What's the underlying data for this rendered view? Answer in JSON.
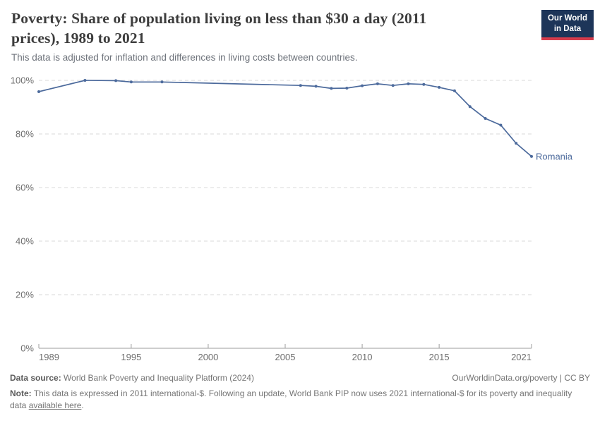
{
  "header": {
    "title": "Poverty: Share of population living on less than $30 a day (2011 prices), 1989 to 2021",
    "subtitle": "This data is adjusted for inflation and differences in living costs between countries.",
    "logo_line1": "Our World",
    "logo_line2": "in Data"
  },
  "chart_data": {
    "type": "line",
    "title": "Poverty: Share of population living on less than $30 a day (2011 prices), 1989 to 2021",
    "subtitle": "This data is adjusted for inflation and differences in living costs between countries.",
    "xlabel": "",
    "ylabel": "",
    "xlim": [
      1989,
      2021
    ],
    "ylim": [
      0,
      100
    ],
    "x_ticks": [
      1989,
      1995,
      2000,
      2005,
      2010,
      2015,
      2021
    ],
    "y_ticks": [
      0,
      20,
      40,
      60,
      80,
      100
    ],
    "y_tick_suffix": "%",
    "grid": "horizontal-dashed",
    "legend": "end-of-line-label",
    "series": [
      {
        "name": "Romania",
        "color": "#4C6A9C",
        "points": [
          [
            1989,
            95.8
          ],
          [
            1992,
            100.0
          ],
          [
            1994,
            99.9
          ],
          [
            1995,
            99.4
          ],
          [
            1997,
            99.4
          ],
          [
            2006,
            98.1
          ],
          [
            2007,
            97.8
          ],
          [
            2008,
            97.0
          ],
          [
            2009,
            97.1
          ],
          [
            2010,
            98.0
          ],
          [
            2011,
            98.7
          ],
          [
            2012,
            98.1
          ],
          [
            2013,
            98.7
          ],
          [
            2014,
            98.5
          ],
          [
            2015,
            97.4
          ],
          [
            2016,
            96.1
          ],
          [
            2017,
            90.2
          ],
          [
            2018,
            85.8
          ],
          [
            2019,
            83.3
          ],
          [
            2020,
            76.5
          ],
          [
            2021,
            71.6
          ]
        ]
      }
    ]
  },
  "footer": {
    "source_label": "Data source:",
    "source_text": " World Bank Poverty and Inequality Platform (2024)",
    "attribution": "OurWorldinData.org/poverty | CC BY",
    "note_label": "Note:",
    "note_before": " This data is expressed in 2011 international-$. Following an update, World Bank PIP now uses 2021 international-$ for its poverty and inequality data ",
    "note_link": "available here",
    "note_after": "."
  },
  "colors": {
    "series_blue": "#4C6A9C",
    "logo_navy": "#1d3559",
    "logo_red": "#d73c4c",
    "gridline": "#d9d9d9",
    "axis": "#9e9e9e",
    "tick_text": "#6e6e6e"
  }
}
